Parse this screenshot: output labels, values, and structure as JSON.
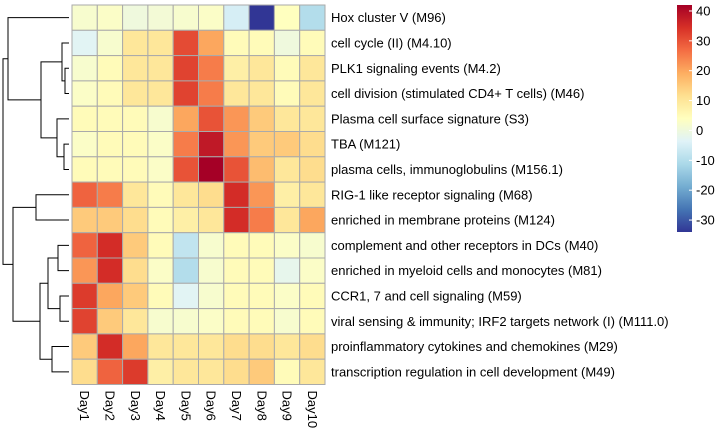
{
  "chart_data": {
    "type": "heatmap",
    "x": [
      "Day1",
      "Day2",
      "Day3",
      "Day4",
      "Day5",
      "Day6",
      "Day7",
      "Day8",
      "Day9",
      "Day10"
    ],
    "y": [
      "Hox cluster V (M96)",
      "cell cycle (II) (M4.10)",
      "PLK1 signaling events (M4.2)",
      "cell division (stimulated CD4+ T cells) (M46)",
      "Plasma cell surface signature (S3)",
      "TBA (M121)",
      "plasma cells, immunoglobulins (M156.1)",
      "RIG-1 like receptor signaling (M68)",
      "enriched in membrane proteins (M124)",
      "complement and other receptors in DCs (M40)",
      "enriched in myeloid cells and monocytes (M81)",
      "CCR1, 7 and cell signaling (M59)",
      "viral sensing & immunity; IRF2 targets network (I) (M111.0)",
      "proinflammatory cytokines and chemokines (M29)",
      "transcription regulation in cell development (M49)"
    ],
    "values": [
      [
        2,
        3,
        0,
        1,
        2,
        3,
        -5,
        -34,
        4,
        -10
      ],
      [
        -3,
        2,
        10,
        10,
        31,
        20,
        5,
        5,
        0,
        5
      ],
      [
        2,
        5,
        10,
        10,
        32,
        25,
        8,
        10,
        5,
        10
      ],
      [
        3,
        5,
        10,
        10,
        32,
        25,
        10,
        10,
        5,
        10
      ],
      [
        5,
        5,
        5,
        2,
        20,
        30,
        22,
        15,
        10,
        10
      ],
      [
        3,
        5,
        5,
        3,
        25,
        38,
        22,
        15,
        15,
        12
      ],
      [
        5,
        5,
        5,
        3,
        30,
        42,
        30,
        17,
        10,
        12
      ],
      [
        28,
        25,
        10,
        5,
        10,
        12,
        35,
        22,
        8,
        10
      ],
      [
        15,
        15,
        12,
        5,
        8,
        10,
        35,
        25,
        10,
        20
      ],
      [
        28,
        35,
        15,
        5,
        -8,
        2,
        5,
        5,
        3,
        2
      ],
      [
        22,
        35,
        12,
        3,
        -10,
        2,
        5,
        5,
        -2,
        3
      ],
      [
        33,
        20,
        15,
        5,
        -3,
        2,
        5,
        5,
        3,
        5
      ],
      [
        32,
        15,
        10,
        2,
        2,
        3,
        5,
        5,
        2,
        5
      ],
      [
        15,
        35,
        20,
        10,
        10,
        10,
        12,
        12,
        10,
        12
      ],
      [
        12,
        28,
        33,
        8,
        10,
        10,
        12,
        15,
        5,
        10
      ]
    ],
    "colorbar": {
      "min": -34,
      "max": 42,
      "ticks": [
        40,
        30,
        20,
        10,
        0,
        -10,
        -20,
        -30
      ],
      "colors": [
        "#313695",
        "#4575b4",
        "#74add1",
        "#abd9e9",
        "#e0f3f8",
        "#ffffbf",
        "#fee090",
        "#fdae61",
        "#f46d43",
        "#d73027",
        "#a50026"
      ]
    },
    "cell_border_color": "#aaaaaa",
    "dendrogram": "rows",
    "legend_position": "right"
  }
}
